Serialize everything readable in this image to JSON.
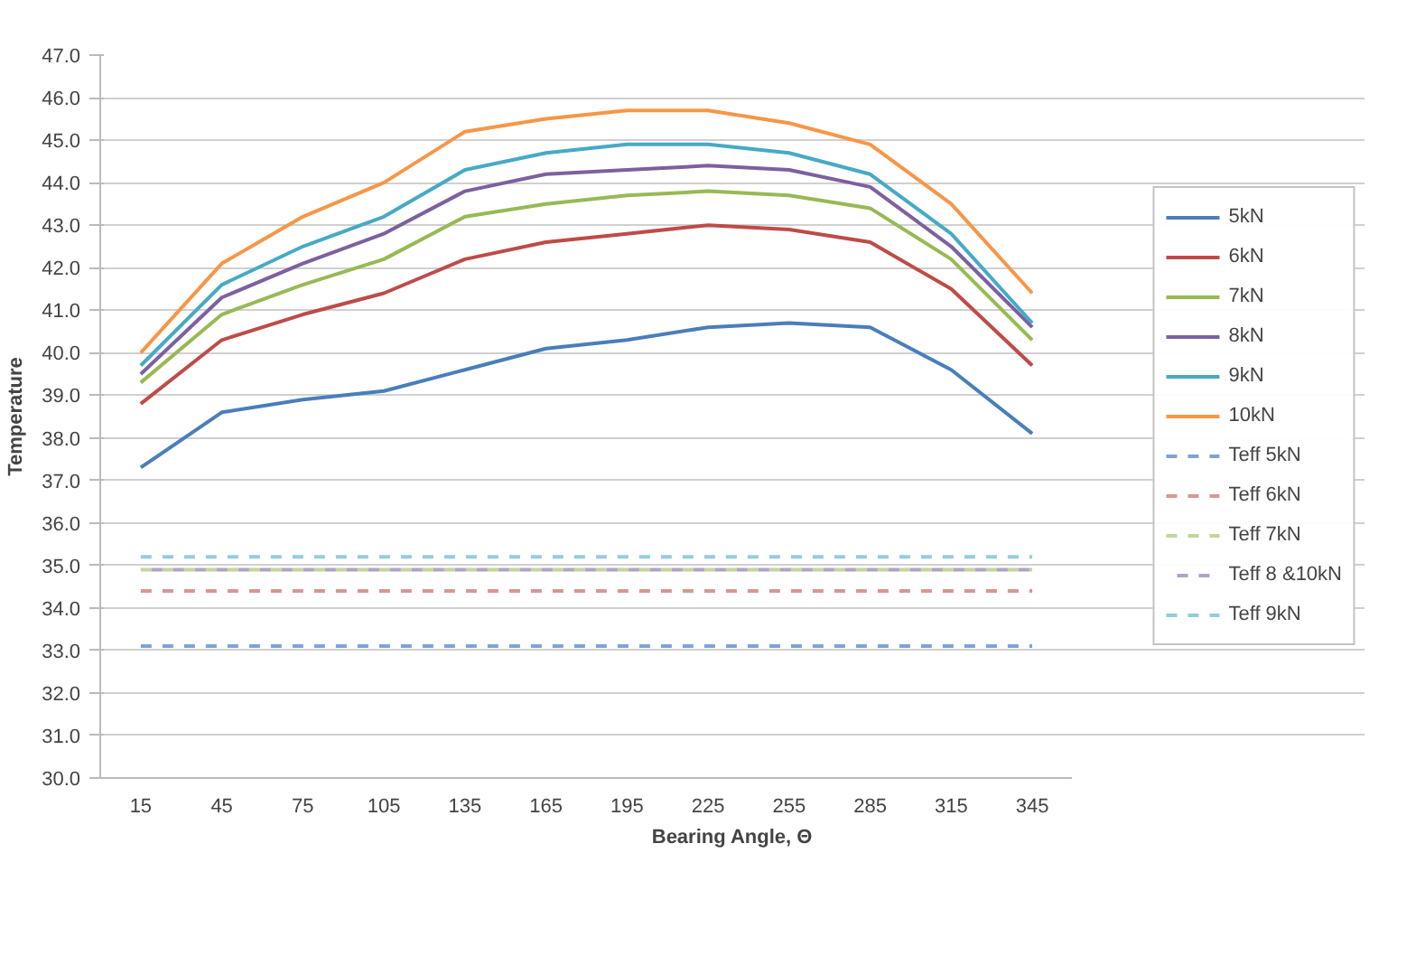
{
  "chart_data": {
    "type": "line",
    "xlabel": "Bearing Angle, Θ",
    "ylabel": "Temperature",
    "categories": [
      "15",
      "45",
      "75",
      "105",
      "135",
      "165",
      "195",
      "225",
      "255",
      "285",
      "315",
      "345"
    ],
    "ylim": [
      30,
      47
    ],
    "yticks": [
      {
        "value": 30,
        "label": "30.0"
      },
      {
        "value": 31,
        "label": "31.0"
      },
      {
        "value": 32,
        "label": "32.0"
      },
      {
        "value": 33,
        "label": "33.0"
      },
      {
        "value": 34,
        "label": "34.0"
      },
      {
        "value": 35,
        "label": "35.0"
      },
      {
        "value": 36,
        "label": "36.0"
      },
      {
        "value": 37,
        "label": "37.0"
      },
      {
        "value": 38,
        "label": "38.0"
      },
      {
        "value": 39,
        "label": "39.0"
      },
      {
        "value": 40,
        "label": "40.0"
      },
      {
        "value": 41,
        "label": "41.0"
      },
      {
        "value": 42,
        "label": "42.0"
      },
      {
        "value": 43,
        "label": "43.0"
      },
      {
        "value": 44,
        "label": "44.0"
      },
      {
        "value": 45,
        "label": "45.0"
      },
      {
        "value": 46,
        "label": "46.0"
      },
      {
        "value": 47,
        "label": "47.0"
      }
    ],
    "grid": "y",
    "legend": "right",
    "marker": "none",
    "series": [
      {
        "name": "5kN",
        "color": "#4a7ebb",
        "values": [
          37.3,
          38.6,
          38.9,
          39.1,
          39.6,
          40.1,
          40.3,
          40.6,
          40.7,
          40.6,
          39.6,
          38.1
        ]
      },
      {
        "name": "6kN",
        "color": "#be4b48",
        "values": [
          38.8,
          40.3,
          40.9,
          41.4,
          42.2,
          42.6,
          42.8,
          43.0,
          42.9,
          42.6,
          41.5,
          39.7
        ]
      },
      {
        "name": "7kN",
        "color": "#98b954",
        "values": [
          39.3,
          40.9,
          41.6,
          42.2,
          43.2,
          43.5,
          43.7,
          43.8,
          43.7,
          43.4,
          42.2,
          40.3
        ]
      },
      {
        "name": "8kN",
        "color": "#7d60a0",
        "values": [
          39.5,
          41.3,
          42.1,
          42.8,
          43.8,
          44.2,
          44.3,
          44.4,
          44.3,
          43.9,
          42.5,
          40.6
        ]
      },
      {
        "name": "9kN",
        "color": "#46aac5",
        "values": [
          39.7,
          41.6,
          42.5,
          43.2,
          44.3,
          44.7,
          44.9,
          44.9,
          44.7,
          44.2,
          42.8,
          40.7
        ]
      },
      {
        "name": "10kN",
        "color": "#f79646",
        "values": [
          40.0,
          42.1,
          43.2,
          44.0,
          45.2,
          45.5,
          45.7,
          45.7,
          45.4,
          44.9,
          43.5,
          41.4
        ]
      },
      {
        "name": "Teff 5kN",
        "color": "#7fa3d6",
        "line_style": "dashed",
        "values": [
          33.1,
          33.1,
          33.1,
          33.1,
          33.1,
          33.1,
          33.1,
          33.1,
          33.1,
          33.1,
          33.1,
          33.1
        ]
      },
      {
        "name": "Teff 6kN",
        "color": "#d99694",
        "line_style": "dashed",
        "values": [
          34.4,
          34.4,
          34.4,
          34.4,
          34.4,
          34.4,
          34.4,
          34.4,
          34.4,
          34.4,
          34.4,
          34.4
        ]
      },
      {
        "name": "Teff 7kN",
        "color": "#c3d69b",
        "line_style": "dashed",
        "values": [
          34.9,
          34.9,
          34.9,
          34.9,
          34.9,
          34.9,
          34.9,
          34.9,
          34.9,
          34.9,
          34.9,
          34.9
        ]
      },
      {
        "name": "Teff 8 &10kN",
        "color": "#b3a2c7",
        "line_style": "dashed",
        "values": [
          34.9,
          34.9,
          34.9,
          34.9,
          34.9,
          34.9,
          34.9,
          34.9,
          34.9,
          34.9,
          34.9,
          34.9
        ]
      },
      {
        "name": "Teff 9kN",
        "color": "#93cddd",
        "line_style": "dashed",
        "values": [
          35.2,
          35.2,
          35.2,
          35.2,
          35.2,
          35.2,
          35.2,
          35.2,
          35.2,
          35.2,
          35.2,
          35.2
        ]
      }
    ]
  }
}
